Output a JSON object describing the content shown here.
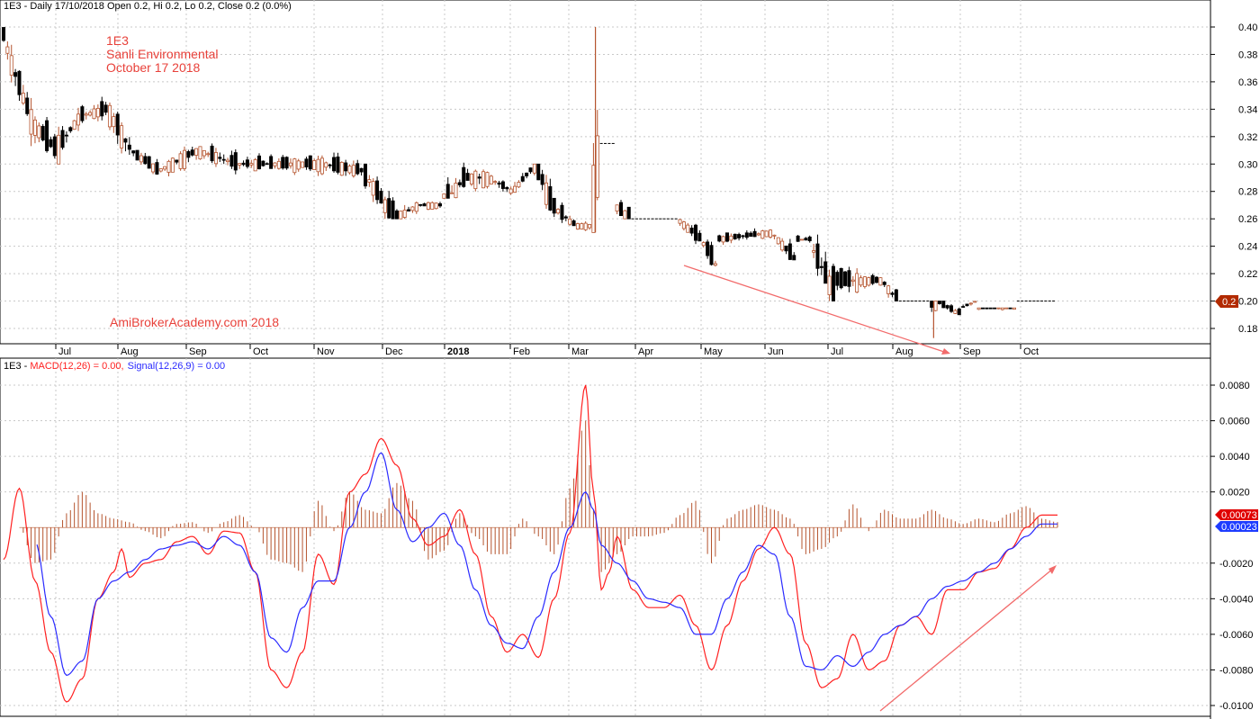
{
  "header": {
    "price": "1E3 - Daily 17/10/2018 Open 0.2, Hi 0.2, Lo 0.2, Close 0.2 (0.0%)",
    "macd_prefix": "1E3 - ",
    "macd_label": "MACD(12,26) = 0.00,",
    "signal_label": "Signal(12,26,9) = 0.00"
  },
  "annotations": {
    "ticker": "1E3",
    "company": "Sanli Environmental",
    "date": "October 17 2018",
    "watermark": "AmiBrokerAcademy.com  2018"
  },
  "colors": {
    "macd": "#ff2020",
    "signal": "#2a2aff",
    "histogram": "#b5542e",
    "up_candle": "#b5542e",
    "down_candle": "#000000",
    "trendline": "#f26b6b",
    "price_tag": "#b22a00",
    "macd_tag": "#e00000",
    "signal_tag": "#1e3cff",
    "grid": "#c8c8c8"
  },
  "chart_data": [
    {
      "type": "candlestick",
      "title": "1E3 - Daily 17/10/2018 Open 0.2, Hi 0.2, Lo 0.2, Close 0.2 (0.0%)",
      "ylim": [
        0.165,
        0.415
      ],
      "yticks": [
        "0.18",
        "0.20",
        "0.22",
        "0.24",
        "0.26",
        "0.28",
        "0.30",
        "0.32",
        "0.34",
        "0.36",
        "0.38",
        "0.40"
      ],
      "x_labels": [
        "Jul",
        "Aug",
        "Sep",
        "Oct",
        "Nov",
        "Dec",
        "2018",
        "Feb",
        "Mar",
        "Apr",
        "May",
        "Jun",
        "Jul",
        "Aug",
        "Sep",
        "Oct"
      ],
      "last_price_tag": "0.2",
      "segments": [
        {
          "x0": 0,
          "x1": 3,
          "s": 0.4,
          "e": 0.37,
          "hi": 0.4,
          "lo": 0.34
        },
        {
          "x0": 3,
          "x1": 8,
          "s": 0.37,
          "e": 0.33,
          "hi": 0.37,
          "lo": 0.31
        },
        {
          "x0": 8,
          "x1": 14,
          "s": 0.33,
          "e": 0.31,
          "hi": 0.34,
          "lo": 0.3
        },
        {
          "x0": 14,
          "x1": 20,
          "s": 0.31,
          "e": 0.335,
          "hi": 0.345,
          "lo": 0.3
        },
        {
          "x0": 20,
          "x1": 27,
          "s": 0.335,
          "e": 0.34,
          "hi": 0.355,
          "lo": 0.33
        },
        {
          "x0": 27,
          "x1": 33,
          "s": 0.34,
          "e": 0.31,
          "hi": 0.35,
          "lo": 0.305
        },
        {
          "x0": 33,
          "x1": 40,
          "s": 0.31,
          "e": 0.295,
          "hi": 0.31,
          "lo": 0.29
        },
        {
          "x0": 40,
          "x1": 50,
          "s": 0.295,
          "e": 0.31,
          "hi": 0.315,
          "lo": 0.29
        },
        {
          "x0": 50,
          "x1": 60,
          "s": 0.31,
          "e": 0.3,
          "hi": 0.315,
          "lo": 0.29
        },
        {
          "x0": 60,
          "x1": 72,
          "s": 0.3,
          "e": 0.3,
          "hi": 0.315,
          "lo": 0.295
        },
        {
          "x0": 72,
          "x1": 82,
          "s": 0.3,
          "e": 0.3,
          "hi": 0.315,
          "lo": 0.29
        },
        {
          "x0": 82,
          "x1": 92,
          "s": 0.3,
          "e": 0.295,
          "hi": 0.315,
          "lo": 0.29
        },
        {
          "x0": 92,
          "x1": 100,
          "s": 0.295,
          "e": 0.26,
          "hi": 0.3,
          "lo": 0.26
        },
        {
          "x0": 100,
          "x1": 106,
          "s": 0.26,
          "e": 0.27,
          "hi": 0.285,
          "lo": 0.26
        },
        {
          "x0": 106,
          "x1": 112,
          "s": 0.27,
          "e": 0.27,
          "hi": 0.275,
          "lo": 0.265
        },
        {
          "x0": 112,
          "x1": 118,
          "s": 0.27,
          "e": 0.29,
          "hi": 0.315,
          "lo": 0.275
        },
        {
          "x0": 118,
          "x1": 124,
          "s": 0.29,
          "e": 0.29,
          "hi": 0.31,
          "lo": 0.28
        },
        {
          "x0": 124,
          "x1": 130,
          "s": 0.29,
          "e": 0.28,
          "hi": 0.295,
          "lo": 0.275
        },
        {
          "x0": 130,
          "x1": 136,
          "s": 0.28,
          "e": 0.3,
          "hi": 0.3,
          "lo": 0.275
        },
        {
          "x0": 136,
          "x1": 140,
          "s": 0.3,
          "e": 0.27,
          "hi": 0.3,
          "lo": 0.25
        },
        {
          "x0": 140,
          "x1": 146,
          "s": 0.27,
          "e": 0.255,
          "hi": 0.275,
          "lo": 0.255
        },
        {
          "x0": 146,
          "x1": 150,
          "s": 0.255,
          "e": 0.255,
          "hi": 0.26,
          "lo": 0.25
        },
        {
          "x0": 150,
          "x1": 152,
          "s": 0.255,
          "e": 0.315,
          "hi": 0.4,
          "lo": 0.25
        },
        {
          "x0": 152,
          "x1": 156,
          "s": 0.315,
          "e": 0.315,
          "hi": 0.315,
          "lo": 0.315
        },
        {
          "x0": 156,
          "x1": 160,
          "s": 0.27,
          "e": 0.26,
          "hi": 0.28,
          "lo": 0.26
        },
        {
          "x0": 160,
          "x1": 172,
          "s": 0.26,
          "e": 0.26,
          "hi": 0.26,
          "lo": 0.26
        },
        {
          "x0": 172,
          "x1": 178,
          "s": 0.26,
          "e": 0.245,
          "hi": 0.26,
          "lo": 0.24
        },
        {
          "x0": 178,
          "x1": 182,
          "s": 0.245,
          "e": 0.225,
          "hi": 0.245,
          "lo": 0.225
        },
        {
          "x0": 182,
          "x1": 196,
          "s": 0.245,
          "e": 0.25,
          "hi": 0.255,
          "lo": 0.24
        },
        {
          "x0": 196,
          "x1": 202,
          "s": 0.25,
          "e": 0.23,
          "hi": 0.255,
          "lo": 0.23
        },
        {
          "x0": 202,
          "x1": 206,
          "s": 0.245,
          "e": 0.245,
          "hi": 0.25,
          "lo": 0.24
        },
        {
          "x0": 206,
          "x1": 212,
          "s": 0.24,
          "e": 0.205,
          "hi": 0.25,
          "lo": 0.2
        },
        {
          "x0": 212,
          "x1": 218,
          "s": 0.215,
          "e": 0.215,
          "hi": 0.225,
          "lo": 0.19
        },
        {
          "x0": 218,
          "x1": 224,
          "s": 0.215,
          "e": 0.215,
          "hi": 0.22,
          "lo": 0.205
        },
        {
          "x0": 224,
          "x1": 228,
          "s": 0.215,
          "e": 0.2,
          "hi": 0.22,
          "lo": 0.2
        },
        {
          "x0": 228,
          "x1": 236,
          "s": 0.2,
          "e": 0.2,
          "hi": 0.2,
          "lo": 0.2
        },
        {
          "x0": 236,
          "x1": 238,
          "s": 0.2,
          "e": 0.2,
          "hi": 0.2,
          "lo": 0.173
        },
        {
          "x0": 238,
          "x1": 244,
          "s": 0.2,
          "e": 0.19,
          "hi": 0.2,
          "lo": 0.19
        },
        {
          "x0": 244,
          "x1": 248,
          "s": 0.195,
          "e": 0.2,
          "hi": 0.205,
          "lo": 0.195
        },
        {
          "x0": 248,
          "x1": 258,
          "s": 0.195,
          "e": 0.195,
          "hi": 0.195,
          "lo": 0.19
        },
        {
          "x0": 258,
          "x1": 268,
          "s": 0.2,
          "e": 0.2,
          "hi": 0.2,
          "lo": 0.2
        }
      ]
    },
    {
      "type": "line",
      "title": "MACD(12,26) = 0.00, Signal(12,26,9) = 0.00",
      "ylim": [
        -0.0103,
        0.0092
      ],
      "yticks": [
        "0.0080",
        "0.0060",
        "0.0040",
        "0.0020",
        "-0.0020",
        "-0.0040",
        "-0.0060",
        "-0.0080",
        "-0.0100"
      ],
      "macd_tag": "0.00073",
      "signal_tag": "0.00023",
      "series": [
        {
          "name": "MACD(12,26)",
          "x": [
            0,
            4,
            8,
            12,
            16,
            20,
            24,
            28,
            30,
            32,
            36,
            40,
            44,
            48,
            52,
            56,
            60,
            64,
            68,
            72,
            76,
            80,
            84,
            88,
            92,
            96,
            100,
            104,
            108,
            112,
            116,
            120,
            124,
            128,
            132,
            136,
            140,
            144,
            148,
            150,
            152,
            154,
            156,
            160,
            164,
            168,
            172,
            176,
            180,
            184,
            188,
            192,
            196,
            200,
            204,
            208,
            212,
            216,
            220,
            224,
            228,
            232,
            236,
            240,
            244,
            248,
            252,
            256,
            260,
            264,
            268
          ],
          "values": [
            -0.0018,
            0.0022,
            -0.003,
            -0.007,
            -0.0098,
            -0.0085,
            -0.004,
            -0.0025,
            -0.0012,
            -0.0028,
            -0.002,
            -0.0018,
            -0.0008,
            -0.0005,
            -0.0015,
            -0.0002,
            -0.0003,
            -0.0025,
            -0.008,
            -0.009,
            -0.007,
            -0.0015,
            -0.0032,
            0.002,
            0.003,
            0.005,
            0.0035,
            0.0005,
            -0.001,
            -0.0005,
            0.001,
            -0.0015,
            -0.005,
            -0.007,
            -0.006,
            -0.0073,
            -0.004,
            -0.0003,
            0.008,
            0.002,
            -0.0035,
            -0.0025,
            -0.0005,
            -0.0035,
            -0.0045,
            -0.0045,
            -0.0038,
            -0.0055,
            -0.008,
            -0.0055,
            -0.003,
            -0.0012,
            0.0,
            -0.0015,
            -0.0065,
            -0.009,
            -0.0085,
            -0.006,
            -0.008,
            -0.0075,
            -0.0055,
            -0.005,
            -0.006,
            -0.0035,
            -0.0035,
            -0.0025,
            -0.0023,
            -0.0012,
            0.0,
            0.0007,
            0.0007
          ]
        },
        {
          "name": "Signal(12,26,9)",
          "x": [
            0,
            4,
            8,
            12,
            16,
            20,
            24,
            28,
            32,
            36,
            40,
            44,
            48,
            52,
            56,
            60,
            64,
            68,
            72,
            76,
            80,
            84,
            88,
            92,
            96,
            100,
            104,
            108,
            112,
            116,
            120,
            124,
            128,
            132,
            136,
            140,
            144,
            148,
            150,
            152,
            156,
            160,
            164,
            168,
            172,
            176,
            180,
            184,
            188,
            192,
            196,
            200,
            204,
            208,
            212,
            216,
            220,
            224,
            228,
            232,
            236,
            240,
            244,
            248,
            252,
            256,
            260,
            264,
            268
          ],
          "values": [
            null,
            null,
            -0.0008,
            -0.005,
            -0.0083,
            -0.0075,
            -0.004,
            -0.003,
            -0.0025,
            -0.0018,
            -0.0012,
            -0.001,
            -0.0008,
            -0.0012,
            -0.0005,
            -0.001,
            -0.0025,
            -0.0062,
            -0.007,
            -0.0045,
            -0.003,
            -0.003,
            0.0,
            0.002,
            0.0042,
            0.001,
            -0.0008,
            0.0,
            0.0008,
            -0.001,
            -0.0035,
            -0.0055,
            -0.0065,
            -0.0068,
            -0.005,
            -0.0025,
            0.0,
            0.002,
            0.001,
            -0.001,
            -0.002,
            -0.003,
            -0.004,
            -0.0042,
            -0.0045,
            -0.006,
            -0.006,
            -0.004,
            -0.0025,
            -0.001,
            -0.0015,
            -0.005,
            -0.0078,
            -0.008,
            -0.0072,
            -0.0078,
            -0.007,
            -0.006,
            -0.0055,
            -0.005,
            -0.004,
            -0.0033,
            -0.003,
            -0.0025,
            -0.002,
            -0.0012,
            -0.0005,
            0.0002,
            0.0002
          ]
        },
        {
          "name": "Histogram",
          "x": [
            4,
            8,
            12,
            16,
            20,
            24,
            28,
            32,
            36,
            40,
            44,
            48,
            52,
            56,
            60,
            64,
            68,
            72,
            76,
            80,
            84,
            88,
            92,
            96,
            100,
            104,
            108,
            112,
            116,
            120,
            124,
            128,
            132,
            136,
            140,
            144,
            148,
            150,
            152,
            156,
            160,
            164,
            168,
            172,
            176,
            180,
            184,
            188,
            192,
            196,
            200,
            204,
            208,
            212,
            216,
            220,
            224,
            228,
            232,
            236,
            240,
            244,
            248,
            252,
            256,
            260,
            264,
            268
          ],
          "values": [
            0.0,
            -0.002,
            -0.0018,
            0.0008,
            0.002,
            0.0008,
            0.0005,
            0.0003,
            -0.0002,
            -0.0006,
            0.0002,
            0.0003,
            -0.0003,
            0.0003,
            0.0007,
            0.0,
            -0.0018,
            -0.002,
            -0.0025,
            0.0015,
            -0.0002,
            0.002,
            0.001,
            0.0008,
            0.0025,
            0.0015,
            -0.0018,
            -0.0013,
            0.0008,
            -0.0005,
            -0.0015,
            -0.0015,
            0.0005,
            -0.0005,
            -0.0015,
            0.0022,
            0.006,
            0.001,
            -0.0025,
            -0.0015,
            -0.0005,
            -0.0005,
            -0.0003,
            0.0007,
            0.0015,
            -0.002,
            0.0005,
            0.001,
            0.0013,
            0.001,
            0.0005,
            -0.0015,
            -0.0012,
            -0.0005,
            0.0013,
            -0.0002,
            0.001,
            0.0005,
            0.0005,
            0.001,
            0.0005,
            0.0002,
            0.0005,
            0.0003,
            0.0008,
            0.0012,
            0.0005,
            0.0003
          ]
        }
      ]
    }
  ]
}
